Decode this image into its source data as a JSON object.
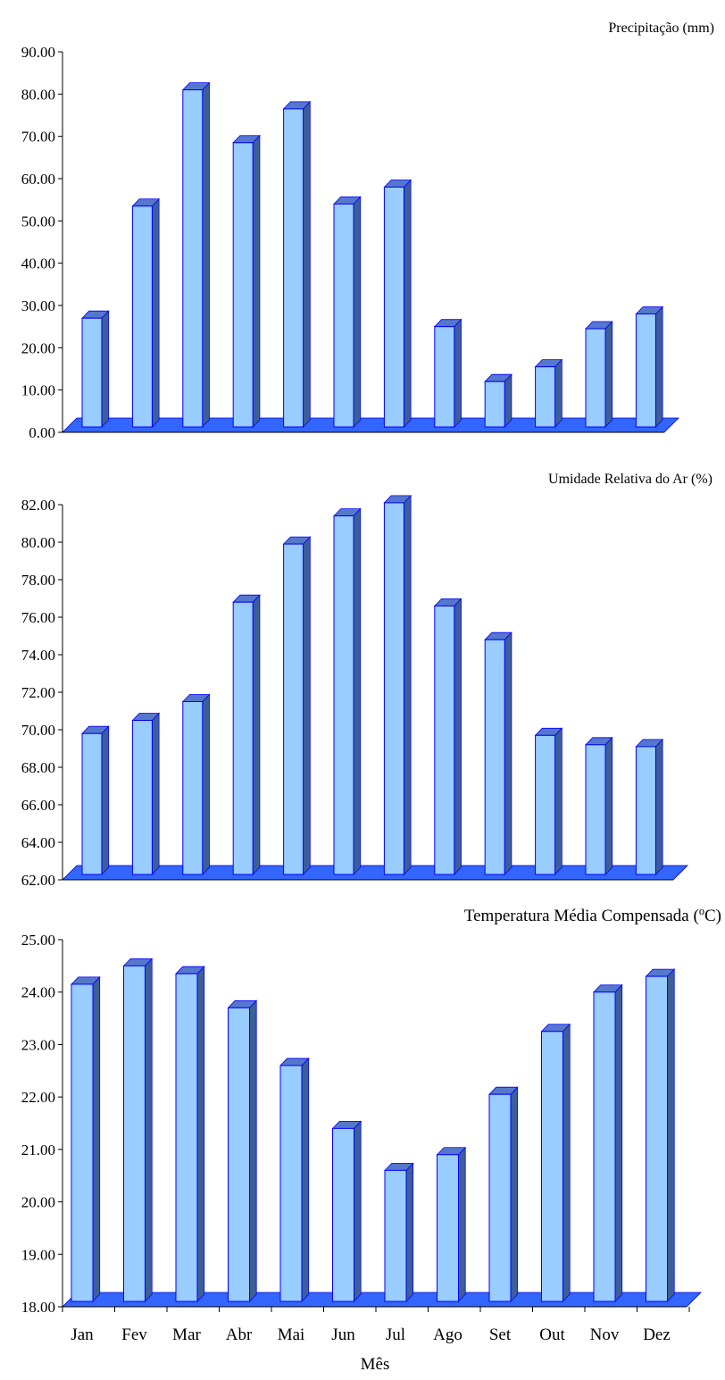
{
  "chart_data": [
    {
      "type": "bar",
      "title": "Precipitação (mm)",
      "xlabel": "",
      "ylabel": "",
      "categories": [
        "Jan",
        "Fev",
        "Mar",
        "Abr",
        "Mai",
        "Jun",
        "Jul",
        "Ago",
        "Set",
        "Out",
        "Nov",
        "Dez"
      ],
      "values": [
        27.0,
        53.5,
        81.0,
        68.5,
        76.5,
        54.0,
        58.0,
        25.0,
        12.0,
        15.5,
        24.5,
        28.0
      ],
      "ylim": [
        0,
        90
      ],
      "ytick_step": 10,
      "ytick_labels": [
        "0.00",
        "10.00",
        "20.00",
        "30.00",
        "40.00",
        "50.00",
        "60.00",
        "70.00",
        "80.00",
        "90.00"
      ],
      "show_category_labels": false,
      "grid": false,
      "colors": {
        "bar_front": "#99ccff",
        "bar_side": "#3d5f99",
        "bar_top": "#5577cc",
        "bar_edge": "#0000ff",
        "floor": "#3366ff"
      }
    },
    {
      "type": "bar",
      "title": "Umidade Relativa do Ar (%)",
      "xlabel": "",
      "ylabel": "",
      "categories": [
        "Jan",
        "Fev",
        "Mar",
        "Abr",
        "Mai",
        "Jun",
        "Jul",
        "Ago",
        "Set",
        "Out",
        "Nov",
        "Dez"
      ],
      "values": [
        69.8,
        70.5,
        71.5,
        76.8,
        79.9,
        81.4,
        82.1,
        76.6,
        74.8,
        69.7,
        69.2,
        69.1
      ],
      "ylim": [
        62,
        82
      ],
      "ytick_step": 2,
      "ytick_labels": [
        "62.00",
        "64.00",
        "66.00",
        "68.00",
        "70.00",
        "72.00",
        "74.00",
        "76.00",
        "78.00",
        "80.00",
        "82.00"
      ],
      "show_category_labels": false,
      "grid": false,
      "colors": {
        "bar_front": "#99ccff",
        "bar_side": "#3d5f99",
        "bar_top": "#5577cc",
        "bar_edge": "#0000ff",
        "floor": "#3366ff"
      }
    },
    {
      "type": "bar",
      "title": "Temperatura Média Compensada (°C)",
      "xlabel": "Mês",
      "ylabel": "",
      "categories": [
        "Jan",
        "Fev",
        "Mar",
        "Abr",
        "Mai",
        "Jun",
        "Jul",
        "Ago",
        "Set",
        "Out",
        "Nov",
        "Dez"
      ],
      "values": [
        24.15,
        24.5,
        24.35,
        23.7,
        22.6,
        21.4,
        20.6,
        20.9,
        22.05,
        23.25,
        24.0,
        24.3
      ],
      "ylim": [
        18,
        25
      ],
      "ytick_step": 1,
      "ytick_labels": [
        "18.00",
        "19.00",
        "20.00",
        "21.00",
        "22.00",
        "23.00",
        "24.00",
        "25.00"
      ],
      "show_category_labels": true,
      "grid": false,
      "colors": {
        "bar_front": "#99ccff",
        "bar_side": "#3d5f99",
        "bar_top": "#5577cc",
        "bar_edge": "#0000ff",
        "floor": "#3366ff"
      }
    }
  ]
}
